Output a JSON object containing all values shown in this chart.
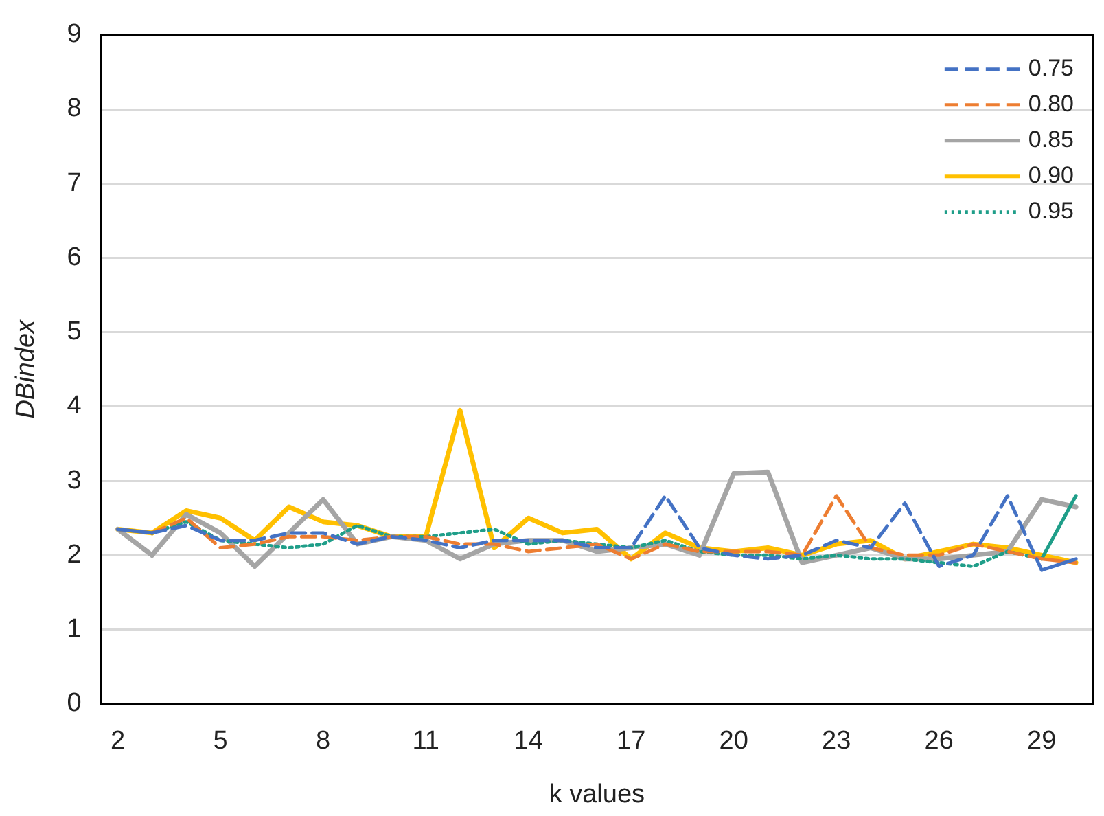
{
  "chart_data": {
    "type": "line",
    "xlabel": "k values",
    "ylabel": "DBindex",
    "categories": [
      "2",
      null,
      null,
      "5",
      null,
      null,
      "8",
      null,
      null,
      "11",
      null,
      null,
      "14",
      null,
      null,
      "17",
      null,
      null,
      "20",
      null,
      null,
      "23",
      null,
      null,
      "26",
      null,
      null,
      "29",
      null
    ],
    "ylim": [
      0,
      9
    ],
    "yticks": [
      0,
      1,
      2,
      3,
      4,
      5,
      6,
      7,
      8,
      9
    ],
    "grid": "y",
    "legend": "top right",
    "marker": "none",
    "series": [
      {
        "name": "0.75",
        "color": "#4472c4",
        "line_style": "dashed",
        "values": [
          2.35,
          2.3,
          2.4,
          2.2,
          2.2,
          2.3,
          2.3,
          2.15,
          2.25,
          2.2,
          2.1,
          2.2,
          2.2,
          2.2,
          2.1,
          2.1,
          2.8,
          2.1,
          2.0,
          1.95,
          2.0,
          2.2,
          2.1,
          2.7,
          1.85,
          2.0,
          2.8,
          1.8,
          1.95
        ]
      },
      {
        "name": "0.80",
        "color": "#ed7d31",
        "line_style": "dashed",
        "values": [
          2.35,
          2.3,
          2.5,
          2.1,
          2.15,
          2.25,
          2.25,
          2.2,
          2.25,
          2.25,
          2.15,
          2.15,
          2.05,
          2.1,
          2.15,
          1.95,
          2.15,
          2.05,
          2.05,
          2.05,
          2.0,
          2.8,
          2.1,
          2.0,
          2.0,
          2.15,
          2.05,
          1.95,
          1.9
        ]
      },
      {
        "name": "0.85",
        "color": "#a5a5a5",
        "line_style": "solid",
        "values": [
          2.35,
          2.0,
          2.55,
          2.3,
          1.85,
          2.3,
          2.75,
          2.15,
          2.25,
          2.2,
          1.95,
          2.15,
          2.2,
          2.2,
          2.05,
          2.1,
          2.15,
          2.0,
          3.1,
          3.12,
          1.9,
          2.0,
          2.1,
          1.95,
          1.95,
          2.0,
          2.05,
          2.75,
          2.65
        ]
      },
      {
        "name": "0.90",
        "color": "#ffc000",
        "line_style": "solid",
        "values": [
          2.35,
          2.3,
          2.6,
          2.5,
          2.2,
          2.65,
          2.45,
          2.4,
          2.25,
          2.25,
          3.95,
          2.1,
          2.5,
          2.3,
          2.35,
          1.95,
          2.3,
          2.1,
          2.05,
          2.1,
          2.0,
          2.15,
          2.2,
          1.95,
          2.05,
          2.15,
          2.1,
          2.0,
          1.9
        ]
      },
      {
        "name": "0.95",
        "color": "#1f9e89",
        "line_style": "dotted",
        "values": [
          2.35,
          2.3,
          2.45,
          2.2,
          2.15,
          2.1,
          2.15,
          2.4,
          2.25,
          2.25,
          2.3,
          2.35,
          2.15,
          2.2,
          2.15,
          2.1,
          2.2,
          2.05,
          2.0,
          2.0,
          1.95,
          2.0,
          1.95,
          1.95,
          1.9,
          1.85,
          2.05,
          1.95,
          2.8
        ]
      }
    ]
  }
}
